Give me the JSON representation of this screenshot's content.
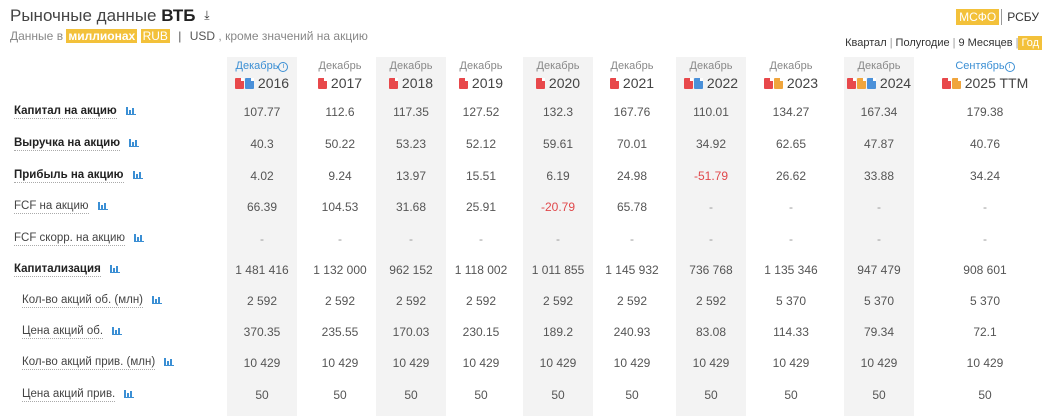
{
  "header": {
    "title_prefix": "Рыночные данные",
    "title_company": "ВТБ",
    "download_icon": "download-icon",
    "units_prefix": "Данные в",
    "units_scale": "миллионах",
    "currency_rub": "RUB",
    "currency_usd": "USD",
    "units_note": ", кроме значений на акцию"
  },
  "standards": {
    "active": "МСФО",
    "other": "РСБУ"
  },
  "periods": {
    "quarter": "Квартал",
    "half": "Полугодие",
    "nine": "9 Месяцев",
    "year": "Год"
  },
  "accent_color": "#f3c13a",
  "columns": [
    {
      "month": "Декабрь",
      "year": "2016",
      "info": true,
      "docs": [
        "pdf",
        "xls"
      ]
    },
    {
      "month": "Декабрь",
      "year": "2017",
      "info": false,
      "docs": [
        "pdf"
      ]
    },
    {
      "month": "Декабрь",
      "year": "2018",
      "info": false,
      "docs": [
        "pdf"
      ]
    },
    {
      "month": "Декабрь",
      "year": "2019",
      "info": false,
      "docs": [
        "pdf"
      ]
    },
    {
      "month": "Декабрь",
      "year": "2020",
      "info": false,
      "docs": [
        "pdf"
      ]
    },
    {
      "month": "Декабрь",
      "year": "2021",
      "info": false,
      "docs": [
        "pdf"
      ]
    },
    {
      "month": "Декабрь",
      "year": "2022",
      "info": false,
      "docs": [
        "pdf",
        "xls"
      ]
    },
    {
      "month": "Декабрь",
      "year": "2023",
      "info": false,
      "docs": [
        "pdf",
        "ppt"
      ]
    },
    {
      "month": "Декабрь",
      "year": "2024",
      "info": false,
      "docs": [
        "pdf",
        "ppt",
        "xls"
      ]
    },
    {
      "month": "Сентябрь",
      "year": "2025 TTM",
      "info": true,
      "docs": [
        "pdf",
        "ppt"
      ]
    }
  ],
  "rows": [
    {
      "label": "Капитал на акцию",
      "bold": true,
      "indent": false,
      "values": [
        "107.77",
        "112.6",
        "117.35",
        "127.52",
        "132.3",
        "167.76",
        "110.01",
        "134.27",
        "167.34",
        "179.38"
      ]
    },
    {
      "label": "Выручка на акцию",
      "bold": true,
      "indent": false,
      "values": [
        "40.3",
        "50.22",
        "53.23",
        "52.12",
        "59.61",
        "70.01",
        "34.92",
        "62.65",
        "47.87",
        "40.76"
      ]
    },
    {
      "label": "Прибыль на акцию",
      "bold": true,
      "indent": false,
      "values": [
        "4.02",
        "9.24",
        "13.97",
        "15.51",
        "6.19",
        "24.98",
        "-51.79",
        "26.62",
        "33.88",
        "34.24"
      ]
    },
    {
      "label": "FCF на акцию",
      "bold": false,
      "indent": false,
      "values": [
        "66.39",
        "104.53",
        "31.68",
        "25.91",
        "-20.79",
        "65.78",
        "-",
        "-",
        "-",
        "-"
      ]
    },
    {
      "label": "FCF скорр. на акцию",
      "bold": false,
      "indent": false,
      "values": [
        "-",
        "-",
        "-",
        "-",
        "-",
        "-",
        "-",
        "-",
        "-",
        "-"
      ]
    },
    {
      "label": "Капитализация",
      "bold": true,
      "indent": false,
      "values": [
        "1 481 416",
        "1 132 000",
        "962 152",
        "1 118 002",
        "1 011 855",
        "1 145 932",
        "736 768",
        "1 135 346",
        "947 479",
        "908 601"
      ]
    },
    {
      "label": "Кол-во акций об. (млн)",
      "bold": false,
      "indent": true,
      "values": [
        "2 592",
        "2 592",
        "2 592",
        "2 592",
        "2 592",
        "2 592",
        "2 592",
        "5 370",
        "5 370",
        "5 370"
      ]
    },
    {
      "label": "Цена акций об.",
      "bold": false,
      "indent": true,
      "values": [
        "370.35",
        "235.55",
        "170.03",
        "230.15",
        "189.2",
        "240.93",
        "83.08",
        "114.33",
        "79.34",
        "72.1"
      ]
    },
    {
      "label": "Кол-во акций прив. (млн)",
      "bold": false,
      "indent": true,
      "values": [
        "10 429",
        "10 429",
        "10 429",
        "10 429",
        "10 429",
        "10 429",
        "10 429",
        "10 429",
        "10 429",
        "10 429"
      ]
    },
    {
      "label": "Цена акций прив.",
      "bold": false,
      "indent": true,
      "values": [
        "50",
        "50",
        "50",
        "50",
        "50",
        "50",
        "50",
        "50",
        "50",
        "50"
      ]
    }
  ]
}
